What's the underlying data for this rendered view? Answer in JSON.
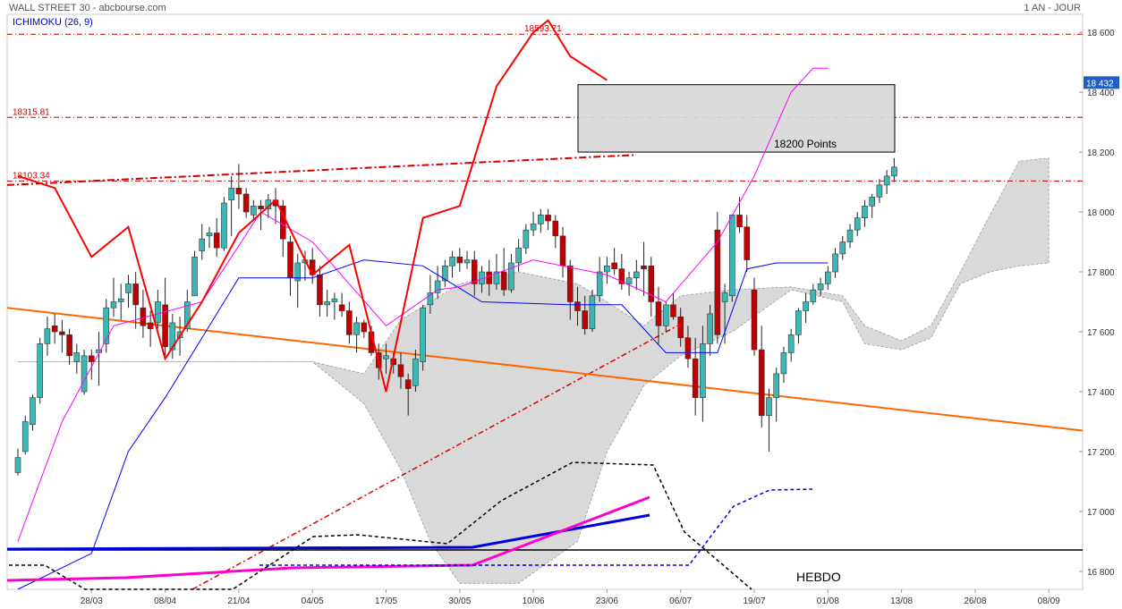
{
  "header": {
    "title": "WALL STREET 30 - abcbourse.com",
    "period": "1 AN - JOUR",
    "indicator": "ICHIMOKU (26, 9)"
  },
  "chart_data": {
    "type": "candlestick",
    "title": "WALL STREET 30 - abcbourse.com",
    "ylim": [
      16740,
      18660
    ],
    "x_tick_labels": [
      "28/03",
      "08/04",
      "21/04",
      "04/05",
      "17/05",
      "30/05",
      "10/06",
      "23/06",
      "06/07",
      "19/07",
      "01/08",
      "13/08",
      "26/08",
      "08/09"
    ],
    "x_tick_index": [
      10,
      20,
      30,
      40,
      50,
      60,
      70,
      80,
      90,
      100,
      110,
      120,
      130,
      140
    ],
    "y_ticks": [
      16800,
      17000,
      17200,
      17400,
      17600,
      17800,
      18000,
      18200,
      18400,
      18600
    ],
    "y_tick_labels": [
      "16 800",
      "17 000",
      "17 200",
      "17 400",
      "17 600",
      "17 800",
      "18 000",
      "18 200",
      "18 400",
      "18 600"
    ],
    "last_price_label": "18 432",
    "last_price": 18432,
    "horizontal_levels": [
      {
        "label": "18593.71",
        "value": 18593.71,
        "color": "#cc0000"
      },
      {
        "label": "18315.81",
        "value": 18315.81,
        "color": "#cc0000"
      },
      {
        "label": "18103.34",
        "value": 18103.34,
        "color": "#cc0000"
      }
    ],
    "annotations": {
      "zone_label": "18200 Points",
      "zone_range": [
        18200,
        18425
      ],
      "weekly_label": "HEBDO"
    },
    "colors": {
      "up": "#3cb8b4",
      "down": "#c00000",
      "tenkan": "#0000ff",
      "kijun": "#ff00ff",
      "chikou": "#ff0000",
      "cloud": "#d9d9d9",
      "support": "#ff6600"
    },
    "candles": [
      [
        17130,
        17210,
        17120,
        17180
      ],
      [
        17200,
        17320,
        17190,
        17300
      ],
      [
        17290,
        17390,
        17270,
        17380
      ],
      [
        17380,
        17580,
        17360,
        17560
      ],
      [
        17560,
        17650,
        17520,
        17610
      ],
      [
        17620,
        17660,
        17560,
        17600
      ],
      [
        17600,
        17640,
        17530,
        17590
      ],
      [
        17590,
        17610,
        17490,
        17520
      ],
      [
        17500,
        17560,
        17460,
        17530
      ],
      [
        17400,
        17540,
        17390,
        17520
      ],
      [
        17520,
        17540,
        17440,
        17500
      ],
      [
        17530,
        17600,
        17420,
        17540
      ],
      [
        17560,
        17710,
        17530,
        17680
      ],
      [
        17680,
        17780,
        17650,
        17700
      ],
      [
        17700,
        17760,
        17640,
        17710
      ],
      [
        17730,
        17790,
        17680,
        17760
      ],
      [
        17760,
        17800,
        17610,
        17690
      ],
      [
        17680,
        17740,
        17580,
        17620
      ],
      [
        17630,
        17670,
        17550,
        17610
      ],
      [
        17630,
        17740,
        17610,
        17700
      ],
      [
        17690,
        17780,
        17520,
        17550
      ],
      [
        17540,
        17660,
        17510,
        17630
      ],
      [
        17580,
        17650,
        17520,
        17600
      ],
      [
        17610,
        17740,
        17600,
        17700
      ],
      [
        17720,
        17870,
        17720,
        17850
      ],
      [
        17870,
        17960,
        17840,
        17910
      ],
      [
        17920,
        17950,
        17880,
        17930
      ],
      [
        17930,
        17980,
        17850,
        17880
      ],
      [
        17880,
        18050,
        17870,
        18030
      ],
      [
        18040,
        18120,
        17920,
        18080
      ],
      [
        18080,
        18160,
        18010,
        18060
      ],
      [
        18060,
        18080,
        17980,
        18000
      ],
      [
        17990,
        18040,
        17970,
        18020
      ],
      [
        18020,
        18040,
        17940,
        18010
      ],
      [
        18010,
        18060,
        17980,
        18040
      ],
      [
        18040,
        18080,
        17960,
        18020
      ],
      [
        18020,
        18040,
        17850,
        17910
      ],
      [
        17900,
        17920,
        17720,
        17780
      ],
      [
        17770,
        17860,
        17680,
        17830
      ],
      [
        17830,
        17870,
        17770,
        17840
      ],
      [
        17840,
        17880,
        17760,
        17790
      ],
      [
        17790,
        17820,
        17650,
        17690
      ],
      [
        17690,
        17740,
        17650,
        17700
      ],
      [
        17700,
        17730,
        17640,
        17710
      ],
      [
        17690,
        17730,
        17650,
        17670
      ],
      [
        17670,
        17700,
        17560,
        17590
      ],
      [
        17590,
        17650,
        17530,
        17630
      ],
      [
        17630,
        17640,
        17580,
        17600
      ],
      [
        17600,
        17620,
        17520,
        17530
      ],
      [
        17530,
        17560,
        17440,
        17480
      ],
      [
        17510,
        17560,
        17460,
        17520
      ],
      [
        17510,
        17530,
        17460,
        17490
      ],
      [
        17490,
        17530,
        17410,
        17450
      ],
      [
        17440,
        17460,
        17320,
        17410
      ],
      [
        17420,
        17540,
        17400,
        17510
      ],
      [
        17500,
        17690,
        17470,
        17680
      ],
      [
        17690,
        17790,
        17660,
        17730
      ],
      [
        17730,
        17820,
        17710,
        17770
      ],
      [
        17770,
        17840,
        17750,
        17820
      ],
      [
        17820,
        17870,
        17780,
        17850
      ],
      [
        17850,
        17880,
        17800,
        17830
      ],
      [
        17830,
        17870,
        17810,
        17840
      ],
      [
        17840,
        17870,
        17720,
        17760
      ],
      [
        17760,
        17820,
        17730,
        17800
      ],
      [
        17800,
        17840,
        17720,
        17760
      ],
      [
        17760,
        17860,
        17740,
        17800
      ],
      [
        17800,
        17880,
        17720,
        17740
      ],
      [
        17740,
        17860,
        17730,
        17830
      ],
      [
        17830,
        17910,
        17800,
        17880
      ],
      [
        17880,
        17960,
        17860,
        17940
      ],
      [
        17940,
        18000,
        17920,
        17960
      ],
      [
        17960,
        18010,
        17930,
        17990
      ],
      [
        17990,
        18010,
        17940,
        17970
      ],
      [
        17970,
        17990,
        17880,
        17920
      ],
      [
        17920,
        17950,
        17780,
        17820
      ],
      [
        17820,
        17840,
        17640,
        17700
      ],
      [
        17700,
        17750,
        17620,
        17670
      ],
      [
        17670,
        17720,
        17590,
        17610
      ],
      [
        17610,
        17740,
        17600,
        17720
      ],
      [
        17720,
        17850,
        17700,
        17800
      ],
      [
        17800,
        17850,
        17760,
        17820
      ],
      [
        17830,
        17880,
        17790,
        17810
      ],
      [
        17810,
        17860,
        17740,
        17760
      ],
      [
        17760,
        17800,
        17720,
        17780
      ],
      [
        17780,
        17840,
        17740,
        17800
      ],
      [
        17820,
        17900,
        17720,
        17810
      ],
      [
        17820,
        17850,
        17650,
        17700
      ],
      [
        17700,
        17750,
        17560,
        17620
      ],
      [
        17620,
        17700,
        17600,
        17690
      ],
      [
        17690,
        17730,
        17640,
        17650
      ],
      [
        17650,
        17680,
        17550,
        17580
      ],
      [
        17580,
        17620,
        17480,
        17510
      ],
      [
        17510,
        17580,
        17320,
        17380
      ],
      [
        17380,
        17620,
        17300,
        17560
      ],
      [
        17560,
        17690,
        17520,
        17660
      ],
      [
        17940,
        18000,
        17560,
        17590
      ],
      [
        17700,
        17760,
        17560,
        17730
      ],
      [
        17720,
        17980,
        17700,
        17990
      ],
      [
        17990,
        18050,
        17930,
        17950
      ],
      [
        17950,
        17990,
        17800,
        17840
      ],
      [
        17740,
        17780,
        17520,
        17540
      ],
      [
        17540,
        17620,
        17280,
        17320
      ],
      [
        17320,
        17410,
        17200,
        17380
      ],
      [
        17380,
        17480,
        17300,
        17460
      ],
      [
        17460,
        17550,
        17430,
        17530
      ],
      [
        17530,
        17610,
        17500,
        17590
      ],
      [
        17590,
        17680,
        17560,
        17670
      ],
      [
        17670,
        17730,
        17630,
        17700
      ],
      [
        17700,
        17760,
        17690,
        17740
      ],
      [
        17740,
        17780,
        17720,
        17760
      ],
      [
        17760,
        17820,
        17740,
        17800
      ],
      [
        17800,
        17880,
        17780,
        17860
      ],
      [
        17860,
        17920,
        17840,
        17900
      ],
      [
        17900,
        17960,
        17880,
        17940
      ],
      [
        17940,
        18000,
        17920,
        17980
      ],
      [
        17980,
        18040,
        17950,
        18020
      ],
      [
        18020,
        18060,
        17980,
        18050
      ],
      [
        18050,
        18110,
        18030,
        18090
      ],
      [
        18090,
        18140,
        18060,
        18120
      ],
      [
        18120,
        18180,
        18100,
        18150
      ]
    ],
    "tenkan": [
      [
        0,
        16740
      ],
      [
        10,
        16860
      ],
      [
        15,
        17200
      ],
      [
        20,
        17380
      ],
      [
        25,
        17580
      ],
      [
        30,
        17780
      ],
      [
        40,
        17780
      ],
      [
        47,
        17840
      ],
      [
        55,
        17820
      ],
      [
        63,
        17700
      ],
      [
        75,
        17690
      ],
      [
        82,
        17690
      ],
      [
        88,
        17530
      ],
      [
        95,
        17530
      ],
      [
        99,
        17810
      ],
      [
        103,
        17830
      ],
      [
        110,
        17830
      ]
    ],
    "kijun": [
      [
        0,
        16900
      ],
      [
        6,
        17300
      ],
      [
        13,
        17620
      ],
      [
        25,
        17700
      ],
      [
        33,
        18000
      ],
      [
        40,
        17900
      ],
      [
        50,
        17620
      ],
      [
        57,
        17740
      ],
      [
        60,
        17750
      ],
      [
        70,
        17840
      ],
      [
        80,
        17790
      ],
      [
        88,
        17700
      ],
      [
        95,
        17900
      ],
      [
        100,
        18120
      ],
      [
        105,
        18400
      ],
      [
        108,
        18480
      ],
      [
        110,
        18480
      ]
    ],
    "chikou": [
      [
        0,
        18120
      ],
      [
        5,
        18080
      ],
      [
        10,
        17850
      ],
      [
        15,
        17950
      ],
      [
        20,
        17510
      ],
      [
        25,
        17700
      ],
      [
        30,
        17930
      ],
      [
        35,
        18040
      ],
      [
        40,
        17790
      ],
      [
        45,
        17890
      ],
      [
        50,
        17400
      ],
      [
        55,
        17980
      ],
      [
        60,
        18020
      ],
      [
        65,
        18420
      ],
      [
        70,
        18600
      ],
      [
        72,
        18640
      ],
      [
        75,
        18520
      ],
      [
        80,
        18440
      ]
    ],
    "cloud": [
      [
        0,
        17500,
        17500
      ],
      [
        40,
        17500,
        17500
      ],
      [
        47,
        17460,
        17360
      ],
      [
        52,
        17640,
        17140
      ],
      [
        56,
        17700,
        16900
      ],
      [
        60,
        17760,
        16760
      ],
      [
        68,
        17800,
        16760
      ],
      [
        76,
        17760,
        16900
      ],
      [
        80,
        17700,
        17200
      ],
      [
        85,
        17620,
        17420
      ],
      [
        90,
        17720,
        17520
      ],
      [
        97,
        17740,
        17600
      ],
      [
        105,
        17750,
        17740
      ],
      [
        112,
        17720,
        17700
      ],
      [
        115,
        17620,
        17560
      ],
      [
        120,
        17570,
        17540
      ],
      [
        124,
        17620,
        17580
      ],
      [
        128,
        17800,
        17760
      ],
      [
        132,
        17990,
        17800
      ],
      [
        136,
        18170,
        17820
      ],
      [
        140,
        18180,
        17830
      ]
    ]
  }
}
